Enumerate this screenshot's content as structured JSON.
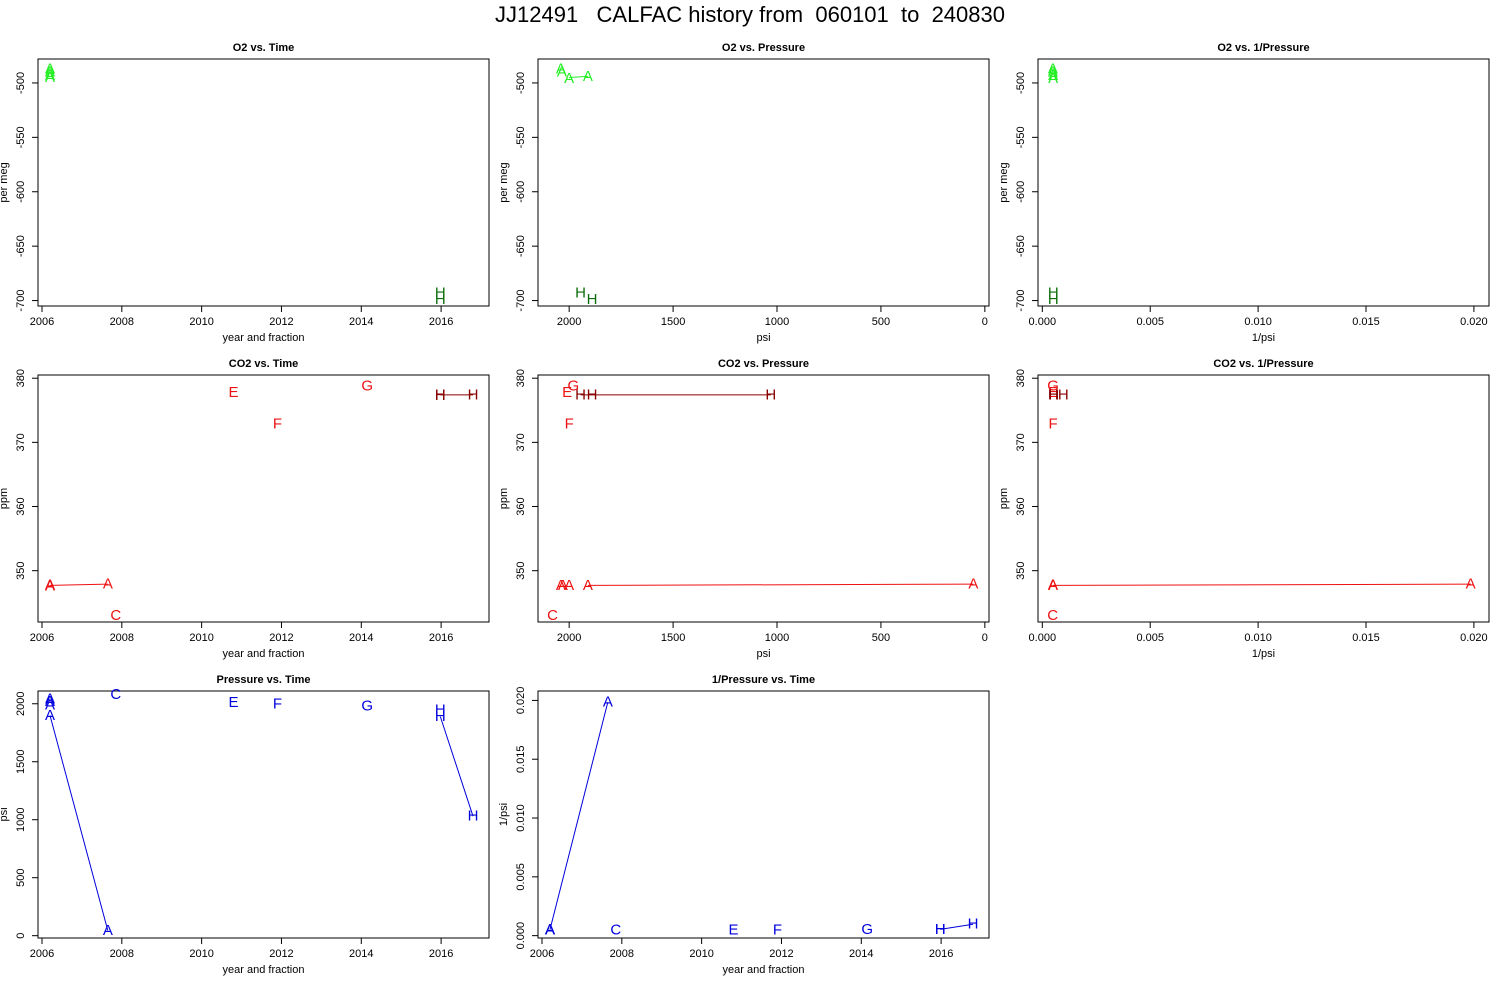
{
  "title": "JJ12491   CALFAC history from  060101  to  240830",
  "colors": {
    "o2_light": "#22ee22",
    "o2_dark": "#0a6e0a",
    "co2_red": "#ee1111",
    "co2_dark": "#880000",
    "pressure": "#0000dd"
  },
  "chart_data": [
    {
      "type": "scatter",
      "title": "O2 vs. Time",
      "xlabel": "year and fraction",
      "ylabel": "per meg",
      "xlim": [
        2005.9,
        2017.2
      ],
      "ylim": [
        -705,
        -478
      ],
      "xticks": [
        "2006",
        "2008",
        "2010",
        "2012",
        "2014",
        "2016"
      ],
      "xtick_values": [
        2006,
        2008,
        2010,
        2012,
        2014,
        2016
      ],
      "yticks": [
        "-500",
        "-550",
        "-600",
        "-650",
        "-700"
      ],
      "ytick_values": [
        -500,
        -550,
        -600,
        -650,
        -700
      ],
      "points": [
        {
          "label": "A",
          "x": 2006.2,
          "y": -487,
          "color": "o2_light"
        },
        {
          "label": "A",
          "x": 2006.2,
          "y": -490,
          "color": "o2_light"
        },
        {
          "label": "A",
          "x": 2006.2,
          "y": -493,
          "color": "o2_light"
        },
        {
          "label": "A",
          "x": 2006.2,
          "y": -495,
          "color": "o2_light"
        },
        {
          "label": "H",
          "x": 2015.98,
          "y": -693,
          "color": "o2_dark"
        },
        {
          "label": "H",
          "x": 2015.98,
          "y": -699,
          "color": "o2_dark"
        }
      ],
      "lines": []
    },
    {
      "type": "scatter",
      "title": "O2 vs. Pressure",
      "xlabel": "psi",
      "ylabel": "per meg",
      "xlim": [
        2150,
        -20
      ],
      "ylim": [
        -705,
        -478
      ],
      "xticks": [
        "2000",
        "1500",
        "1000",
        "500",
        "0"
      ],
      "xtick_values": [
        2000,
        1500,
        1000,
        500,
        0
      ],
      "yticks": [
        "-500",
        "-550",
        "-600",
        "-650",
        "-700"
      ],
      "ytick_values": [
        -500,
        -550,
        -600,
        -650,
        -700
      ],
      "points": [
        {
          "label": "A",
          "x": 2040,
          "y": -487,
          "color": "o2_light"
        },
        {
          "label": "A",
          "x": 2035,
          "y": -490,
          "color": "o2_light"
        },
        {
          "label": "A",
          "x": 2000,
          "y": -496,
          "color": "o2_light"
        },
        {
          "label": "A",
          "x": 1910,
          "y": -494,
          "color": "o2_light"
        },
        {
          "label": "H",
          "x": 1945,
          "y": -693,
          "color": "o2_dark"
        },
        {
          "label": "H",
          "x": 1890,
          "y": -699,
          "color": "o2_dark"
        }
      ],
      "lines": [
        {
          "color": "o2_light",
          "points": [
            [
              2000,
              -495
            ],
            [
              1910,
              -494
            ]
          ]
        }
      ]
    },
    {
      "type": "scatter",
      "title": "O2 vs. 1/Pressure",
      "xlabel": "1/psi",
      "ylabel": "per meg",
      "xlim": [
        -0.0002,
        0.0207
      ],
      "ylim": [
        -705,
        -478
      ],
      "xticks": [
        "0.000",
        "0.005",
        "0.010",
        "0.015",
        "0.020"
      ],
      "xtick_values": [
        0,
        0.005,
        0.01,
        0.015,
        0.02
      ],
      "yticks": [
        "-500",
        "-550",
        "-600",
        "-650",
        "-700"
      ],
      "ytick_values": [
        -500,
        -550,
        -600,
        -650,
        -700
      ],
      "points": [
        {
          "label": "A",
          "x": 0.00049,
          "y": -487,
          "color": "o2_light"
        },
        {
          "label": "A",
          "x": 0.00049,
          "y": -490,
          "color": "o2_light"
        },
        {
          "label": "A",
          "x": 0.0005,
          "y": -493,
          "color": "o2_light"
        },
        {
          "label": "A",
          "x": 0.0005,
          "y": -496,
          "color": "o2_light"
        },
        {
          "label": "H",
          "x": 0.00051,
          "y": -693,
          "color": "o2_dark"
        },
        {
          "label": "H",
          "x": 0.00051,
          "y": -699,
          "color": "o2_dark"
        }
      ],
      "lines": []
    },
    {
      "type": "scatter",
      "title": "CO2 vs. Time",
      "xlabel": "year and fraction",
      "ylabel": "ppm",
      "xlim": [
        2005.9,
        2017.2
      ],
      "ylim": [
        342,
        380.5
      ],
      "xticks": [
        "2006",
        "2008",
        "2010",
        "2012",
        "2014",
        "2016"
      ],
      "xtick_values": [
        2006,
        2008,
        2010,
        2012,
        2014,
        2016
      ],
      "yticks": [
        "350",
        "360",
        "370",
        "380"
      ],
      "ytick_values": [
        350,
        360,
        370,
        380
      ],
      "points": [
        {
          "label": "A",
          "x": 2006.2,
          "y": 347.8,
          "color": "co2_red"
        },
        {
          "label": "A",
          "x": 2006.2,
          "y": 347.7,
          "color": "co2_red"
        },
        {
          "label": "A",
          "x": 2006.2,
          "y": 347.6,
          "color": "co2_red"
        },
        {
          "label": "A",
          "x": 2007.65,
          "y": 347.9,
          "color": "co2_red"
        },
        {
          "label": "C",
          "x": 2007.85,
          "y": 343.0,
          "color": "co2_red"
        },
        {
          "label": "E",
          "x": 2010.8,
          "y": 377.8,
          "color": "co2_red"
        },
        {
          "label": "F",
          "x": 2011.9,
          "y": 372.9,
          "color": "co2_red"
        },
        {
          "label": "G",
          "x": 2014.15,
          "y": 378.8,
          "color": "co2_red"
        },
        {
          "label": "H",
          "x": 2015.98,
          "y": 377.4,
          "color": "co2_dark"
        },
        {
          "label": "H",
          "x": 2015.98,
          "y": 377.3,
          "color": "co2_dark"
        },
        {
          "label": "H",
          "x": 2016.8,
          "y": 377.4,
          "color": "co2_dark"
        }
      ],
      "lines": [
        {
          "color": "co2_red",
          "points": [
            [
              2006.2,
              347.7
            ],
            [
              2007.65,
              347.9
            ]
          ]
        },
        {
          "color": "co2_dark",
          "points": [
            [
              2015.98,
              377.4
            ],
            [
              2016.8,
              377.4
            ]
          ]
        }
      ]
    },
    {
      "type": "scatter",
      "title": "CO2 vs. Pressure",
      "xlabel": "psi",
      "ylabel": "ppm",
      "xlim": [
        2150,
        -20
      ],
      "ylim": [
        342,
        380.5
      ],
      "xticks": [
        "2000",
        "1500",
        "1000",
        "500",
        "0"
      ],
      "xtick_values": [
        2000,
        1500,
        1000,
        500,
        0
      ],
      "yticks": [
        "350",
        "360",
        "370",
        "380"
      ],
      "ytick_values": [
        350,
        360,
        370,
        380
      ],
      "points": [
        {
          "label": "A",
          "x": 2040,
          "y": 347.7,
          "color": "co2_red"
        },
        {
          "label": "A",
          "x": 2030,
          "y": 347.7,
          "color": "co2_red"
        },
        {
          "label": "A",
          "x": 2000,
          "y": 347.7,
          "color": "co2_red"
        },
        {
          "label": "A",
          "x": 1910,
          "y": 347.7,
          "color": "co2_red"
        },
        {
          "label": "A",
          "x": 55,
          "y": 347.9,
          "color": "co2_red"
        },
        {
          "label": "C",
          "x": 2080,
          "y": 343.0,
          "color": "co2_red"
        },
        {
          "label": "E",
          "x": 2010,
          "y": 377.8,
          "color": "co2_red"
        },
        {
          "label": "F",
          "x": 2000,
          "y": 372.9,
          "color": "co2_red"
        },
        {
          "label": "G",
          "x": 1980,
          "y": 378.8,
          "color": "co2_red"
        },
        {
          "label": "H",
          "x": 1945,
          "y": 377.4,
          "color": "co2_dark"
        },
        {
          "label": "H",
          "x": 1890,
          "y": 377.4,
          "color": "co2_dark"
        },
        {
          "label": "H",
          "x": 1030,
          "y": 377.4,
          "color": "co2_dark"
        }
      ],
      "lines": [
        {
          "color": "co2_red",
          "points": [
            [
              1910,
              347.7
            ],
            [
              55,
              347.9
            ]
          ]
        },
        {
          "color": "co2_dark",
          "points": [
            [
              1945,
              377.4
            ],
            [
              1030,
              377.4
            ]
          ]
        }
      ]
    },
    {
      "type": "scatter",
      "title": "CO2 vs. 1/Pressure",
      "xlabel": "1/psi",
      "ylabel": "ppm",
      "xlim": [
        -0.0002,
        0.0207
      ],
      "ylim": [
        342,
        380.5
      ],
      "xticks": [
        "0.000",
        "0.005",
        "0.010",
        "0.015",
        "0.020"
      ],
      "xtick_values": [
        0,
        0.005,
        0.01,
        0.015,
        0.02
      ],
      "yticks": [
        "350",
        "360",
        "370",
        "380"
      ],
      "ytick_values": [
        350,
        360,
        370,
        380
      ],
      "points": [
        {
          "label": "A",
          "x": 0.00049,
          "y": 347.8,
          "color": "co2_red"
        },
        {
          "label": "A",
          "x": 0.0005,
          "y": 347.7,
          "color": "co2_red"
        },
        {
          "label": "A",
          "x": 0.01985,
          "y": 347.9,
          "color": "co2_red"
        },
        {
          "label": "C",
          "x": 0.00048,
          "y": 343.0,
          "color": "co2_red"
        },
        {
          "label": "E",
          "x": 0.0005,
          "y": 377.8,
          "color": "co2_red"
        },
        {
          "label": "F",
          "x": 0.0005,
          "y": 372.9,
          "color": "co2_red"
        },
        {
          "label": "G",
          "x": 0.0005,
          "y": 378.8,
          "color": "co2_red"
        },
        {
          "label": "H",
          "x": 0.00051,
          "y": 377.4,
          "color": "co2_dark"
        },
        {
          "label": "H",
          "x": 0.00053,
          "y": 377.4,
          "color": "co2_dark"
        },
        {
          "label": "H",
          "x": 0.00097,
          "y": 377.4,
          "color": "co2_dark"
        }
      ],
      "lines": [
        {
          "color": "co2_red",
          "points": [
            [
              0.0005,
              347.7
            ],
            [
              0.01985,
              347.9
            ]
          ]
        }
      ]
    },
    {
      "type": "scatter",
      "title": "Pressure vs. Time",
      "xlabel": "year and fraction",
      "ylabel": "psi",
      "xlim": [
        2005.9,
        2017.2
      ],
      "ylim": [
        -20,
        2110
      ],
      "xticks": [
        "2006",
        "2008",
        "2010",
        "2012",
        "2014",
        "2016"
      ],
      "xtick_values": [
        2006,
        2008,
        2010,
        2012,
        2014,
        2016
      ],
      "yticks": [
        "0",
        "500",
        "1000",
        "1500",
        "2000"
      ],
      "ytick_values": [
        0,
        500,
        1000,
        1500,
        2000
      ],
      "points": [
        {
          "label": "A",
          "x": 2006.2,
          "y": 2040,
          "color": "pressure"
        },
        {
          "label": "A",
          "x": 2006.2,
          "y": 2020,
          "color": "pressure"
        },
        {
          "label": "A",
          "x": 2006.2,
          "y": 1990,
          "color": "pressure"
        },
        {
          "label": "A",
          "x": 2006.2,
          "y": 1900,
          "color": "pressure"
        },
        {
          "label": "A",
          "x": 2007.65,
          "y": 45,
          "color": "pressure"
        },
        {
          "label": "C",
          "x": 2007.85,
          "y": 2080,
          "color": "pressure"
        },
        {
          "label": "E",
          "x": 2010.8,
          "y": 2010,
          "color": "pressure"
        },
        {
          "label": "F",
          "x": 2011.9,
          "y": 2000,
          "color": "pressure"
        },
        {
          "label": "G",
          "x": 2014.15,
          "y": 1980,
          "color": "pressure"
        },
        {
          "label": "H",
          "x": 2015.98,
          "y": 1945,
          "color": "pressure"
        },
        {
          "label": "H",
          "x": 2015.98,
          "y": 1890,
          "color": "pressure"
        },
        {
          "label": "H",
          "x": 2016.8,
          "y": 1030,
          "color": "pressure"
        }
      ],
      "lines": [
        {
          "color": "pressure",
          "points": [
            [
              2006.2,
              1900
            ],
            [
              2007.65,
              45
            ]
          ]
        },
        {
          "color": "pressure",
          "points": [
            [
              2015.98,
              1890
            ],
            [
              2016.8,
              1030
            ]
          ]
        }
      ]
    },
    {
      "type": "scatter",
      "title": "1/Pressure vs. Time",
      "xlabel": "year and fraction",
      "ylabel": "1/psi",
      "xlim": [
        2005.9,
        2017.2
      ],
      "ylim": [
        -0.0002,
        0.0208
      ],
      "xticks": [
        "2006",
        "2008",
        "2010",
        "2012",
        "2014",
        "2016"
      ],
      "xtick_values": [
        2006,
        2008,
        2010,
        2012,
        2014,
        2016
      ],
      "yticks": [
        "0.000",
        "0.005",
        "0.010",
        "0.015",
        "0.020"
      ],
      "ytick_values": [
        0,
        0.005,
        0.01,
        0.015,
        0.02
      ],
      "points": [
        {
          "label": "A",
          "x": 2006.2,
          "y": 0.00049,
          "color": "pressure"
        },
        {
          "label": "A",
          "x": 2006.2,
          "y": 0.0005,
          "color": "pressure"
        },
        {
          "label": "A",
          "x": 2006.2,
          "y": 0.00052,
          "color": "pressure"
        },
        {
          "label": "A",
          "x": 2007.65,
          "y": 0.01985,
          "color": "pressure"
        },
        {
          "label": "C",
          "x": 2007.85,
          "y": 0.00048,
          "color": "pressure"
        },
        {
          "label": "E",
          "x": 2010.8,
          "y": 0.0005,
          "color": "pressure"
        },
        {
          "label": "F",
          "x": 2011.9,
          "y": 0.0005,
          "color": "pressure"
        },
        {
          "label": "G",
          "x": 2014.15,
          "y": 0.00051,
          "color": "pressure"
        },
        {
          "label": "H",
          "x": 2015.98,
          "y": 0.00051,
          "color": "pressure"
        },
        {
          "label": "H",
          "x": 2015.98,
          "y": 0.00053,
          "color": "pressure"
        },
        {
          "label": "H",
          "x": 2016.8,
          "y": 0.00097,
          "color": "pressure"
        }
      ],
      "lines": [
        {
          "color": "pressure",
          "points": [
            [
              2006.2,
              0.00052
            ],
            [
              2007.65,
              0.01985
            ]
          ]
        },
        {
          "color": "pressure",
          "points": [
            [
              2015.98,
              0.00053
            ],
            [
              2016.8,
              0.00097
            ]
          ]
        }
      ]
    }
  ]
}
